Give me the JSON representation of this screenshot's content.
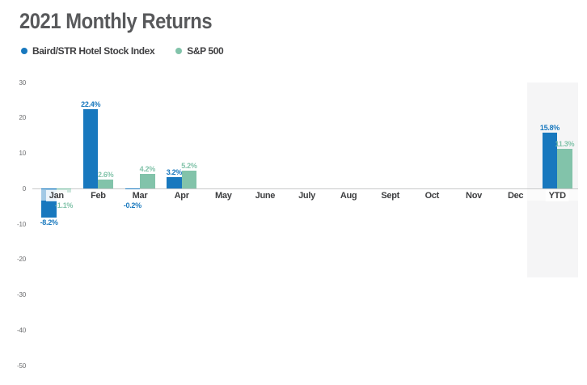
{
  "title": "2021 Monthly Returns",
  "legend": [
    {
      "label": "Baird/STR Hotel Stock Index",
      "color": "#1878be"
    },
    {
      "label": "S&P 500",
      "color": "#82c3aa"
    }
  ],
  "colors": {
    "blue": "#1878be",
    "teal": "#82c3aa",
    "title_text": "#58595b",
    "legend_text": "#404042",
    "month_text": "#3d3e40",
    "tick_text": "#6b6c6e",
    "axis_line": "#c8c9ca",
    "highlight_band": "#f5f5f6"
  },
  "chart_data": {
    "type": "bar",
    "title": "2021 Monthly Returns",
    "categories": [
      "Jan",
      "Feb",
      "Mar",
      "Apr",
      "May",
      "June",
      "July",
      "Aug",
      "Sept",
      "Oct",
      "Nov",
      "Dec",
      "YTD"
    ],
    "series": [
      {
        "name": "Baird/STR Hotel Stock Index",
        "color": "#1878be",
        "values": [
          -8.2,
          22.4,
          -0.2,
          3.2,
          null,
          null,
          null,
          null,
          null,
          null,
          null,
          null,
          15.8
        ],
        "labels": [
          "-8.2%",
          "22.4%",
          "-0.2%",
          "3.2%",
          "",
          "",
          "",
          "",
          "",
          "",
          "",
          "",
          "15.8%"
        ]
      },
      {
        "name": "S&P 500",
        "color": "#82c3aa",
        "values": [
          -1.1,
          2.6,
          4.2,
          5.2,
          null,
          null,
          null,
          null,
          null,
          null,
          null,
          null,
          11.3
        ],
        "labels": [
          "-1.1%",
          "2.6%",
          "4.2%",
          "5.2%",
          "",
          "",
          "",
          "",
          "",
          "",
          "",
          "",
          "11.3%"
        ]
      }
    ],
    "ylim": [
      -50,
      30
    ],
    "yticks": [
      30,
      20,
      10,
      0,
      -10,
      -20,
      -30,
      -40,
      -50
    ],
    "ytick_labels": [
      "30",
      "20",
      "10",
      "0",
      "-10",
      "-20",
      "-30",
      "-40",
      "-50"
    ],
    "grid": false,
    "legend_position": "top-left",
    "highlight_category": "YTD",
    "value_suffix": "%"
  }
}
